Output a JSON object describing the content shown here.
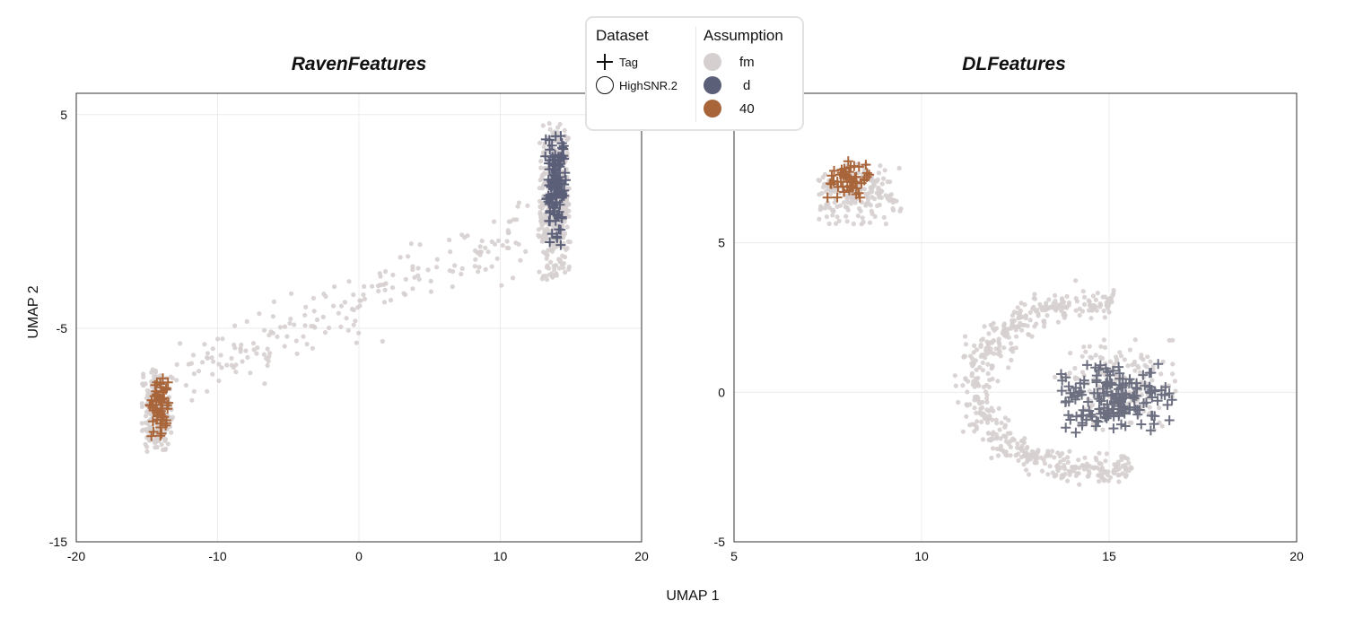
{
  "chart_data": [
    {
      "type": "scatter",
      "title": "RavenFeatures",
      "xlabel": "UMAP 1",
      "ylabel": "UMAP 2",
      "xlim": [
        -20,
        20
      ],
      "ylim": [
        -15,
        6
      ],
      "xticks": [
        "-20",
        "-10",
        "0",
        "10",
        "20"
      ],
      "yticks": [
        "-15",
        "-5",
        "5"
      ],
      "grid": true,
      "series": [
        {
          "name": "fm",
          "dataset": "HighSNR.2",
          "marker": "circle",
          "color": "#d6cfcf",
          "clusters": [
            {
              "shape": "ellipse",
              "cx": 13.8,
              "cy": 0.9,
              "sx": 1.1,
              "sy": 3.6,
              "n": 420
            },
            {
              "shape": "ellipse",
              "cx": -14.3,
              "cy": -8.8,
              "sx": 1.1,
              "sy": 1.9,
              "n": 240
            },
            {
              "shape": "band",
              "x": [
                -13,
                12
              ],
              "y": [
                -7.3,
                -0.4
              ],
              "spread": 0.7,
              "n": 200
            }
          ]
        },
        {
          "name": "d",
          "dataset": "Tag",
          "marker": "plus",
          "color": "#5b5f78",
          "clusters": [
            {
              "shape": "ellipse",
              "cx": 13.9,
              "cy": 1.5,
              "sx": 0.8,
              "sy": 2.6,
              "n": 110
            }
          ]
        },
        {
          "name": "40",
          "dataset": "Tag",
          "marker": "plus",
          "color": "#a9653a",
          "clusters": [
            {
              "shape": "ellipse",
              "cx": -14.1,
              "cy": -8.7,
              "sx": 0.7,
              "sy": 1.3,
              "n": 55
            }
          ]
        }
      ]
    },
    {
      "type": "scatter",
      "title": "DLFeatures",
      "xlim": [
        5,
        20
      ],
      "ylim": [
        -5,
        10
      ],
      "xticks": [
        "5",
        "10",
        "15",
        "20"
      ],
      "yticks": [
        "-5",
        "0",
        "5"
      ],
      "grid": true,
      "series": [
        {
          "name": "fm",
          "dataset": "HighSNR.2",
          "marker": "circle",
          "color": "#d6cfcf",
          "clusters": [
            {
              "shape": "ellipse",
              "cx": 8.3,
              "cy": 6.6,
              "sx": 1.1,
              "sy": 1.0,
              "n": 180
            },
            {
              "shape": "crescent",
              "cx": 14.6,
              "cy": 0.2,
              "r": 3.2,
              "ry": 2.8,
              "n": 520
            },
            {
              "shape": "ellipse",
              "cx": 15.2,
              "cy": 0.3,
              "sx": 1.6,
              "sy": 1.5,
              "n": 160
            }
          ]
        },
        {
          "name": "d",
          "dataset": "Tag",
          "marker": "plus",
          "color": "#6c6f80",
          "clusters": [
            {
              "shape": "ellipse",
              "cx": 15.2,
              "cy": -0.2,
              "sx": 1.5,
              "sy": 1.2,
              "n": 170
            }
          ]
        },
        {
          "name": "40",
          "dataset": "Tag",
          "marker": "plus",
          "color": "#a9653a",
          "clusters": [
            {
              "shape": "ellipse",
              "cx": 8.1,
              "cy": 7.1,
              "sx": 0.6,
              "sy": 0.6,
              "n": 55
            }
          ]
        }
      ]
    }
  ],
  "legend": {
    "dataset_title": "Dataset",
    "dataset_items": [
      {
        "label": "Tag",
        "marker": "plus"
      },
      {
        "label": "HighSNR.2",
        "marker": "circle"
      }
    ],
    "assumption_title": "Assumption",
    "assumption_items": [
      {
        "label": "fm",
        "color": "#d6cfcf"
      },
      {
        "label": "d",
        "color": "#5b5f78"
      },
      {
        "label": "40",
        "color": "#a9653a"
      }
    ]
  },
  "shared_xlabel": "UMAP 1"
}
